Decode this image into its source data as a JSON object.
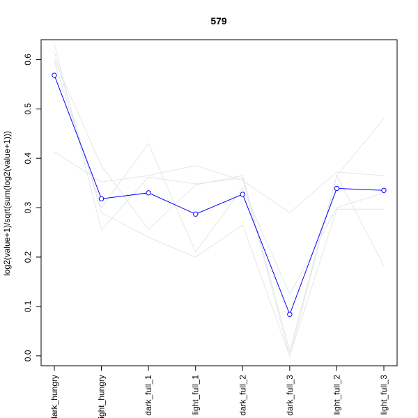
{
  "chart_data": {
    "type": "line",
    "title": "579",
    "xlabel": "",
    "ylabel": "log2(value+1)/sqrt(sum(log2(value+1)))",
    "categories": [
      "dark_hungry",
      "light_hungry",
      "dark_full_1",
      "light_full_1",
      "dark_full_2",
      "dark_full_3",
      "light_full_2",
      "light_full_3"
    ],
    "ylim": [
      -0.02,
      0.64
    ],
    "yticks": [
      0.0,
      0.1,
      0.2,
      0.3,
      0.4,
      0.5,
      0.6
    ],
    "ytick_labels": [
      "0.0",
      "0.1",
      "0.2",
      "0.3",
      "0.4",
      "0.5",
      "0.6"
    ],
    "highlight": {
      "color": "#0000ff",
      "values": [
        0.568,
        0.318,
        0.33,
        0.287,
        0.327,
        0.084,
        0.339,
        0.335
      ]
    },
    "background_series_color": "#e6e6e6",
    "background_series": [
      {
        "values": [
          0.632,
          0.255,
          0.362,
          0.348,
          0.36,
          0.0,
          0.297,
          0.297
        ]
      },
      {
        "values": [
          0.413,
          0.352,
          0.365,
          0.385,
          0.355,
          0.29,
          0.372,
          0.365
        ]
      },
      {
        "values": [
          0.6,
          0.385,
          0.256,
          0.346,
          0.365,
          0.01,
          0.365,
          0.48
        ]
      },
      {
        "values": [
          0.615,
          0.29,
          0.24,
          0.2,
          0.265,
          0.0,
          0.365,
          0.183
        ]
      },
      {
        "values": [
          0.595,
          0.3,
          0.43,
          0.21,
          0.34,
          0.125,
          0.3,
          0.33
        ]
      }
    ],
    "grid": false,
    "legend": "none"
  }
}
